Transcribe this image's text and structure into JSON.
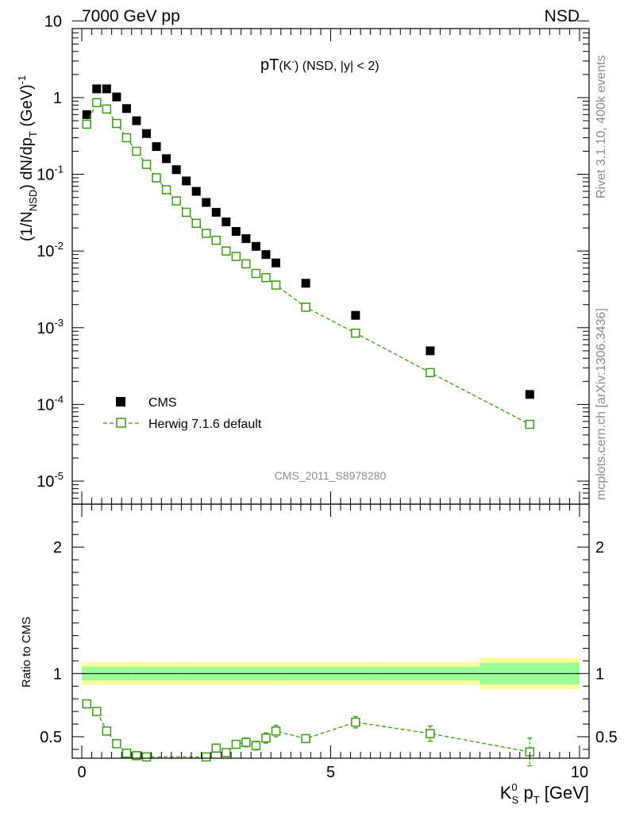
{
  "header": {
    "left": "7000 GeV pp",
    "right": "NSD",
    "side_top": "Rivet 3.1.10,  400k events",
    "side_bottom": "mcplots.cern.ch [arXiv:1306.3436]"
  },
  "chart_data": {
    "type": "scatter",
    "title_main": "pT",
    "title_sub": "(K",
    "title_sup": "-",
    "title_rest": ") (NSD, |y| < 2)",
    "analysis_label": "CMS_2011_S8978280",
    "ylabel": "(1/N_NSD) dN/dp_T (GeV)^-1",
    "ylabel_parts": {
      "a": "(1/N",
      "a_sub": "NSD",
      "b": ") dN/dp",
      "b_sub": "T",
      "c": " (GeV)",
      "c_sup": "-1"
    },
    "xlabel_parts": {
      "a": "K",
      "a_sup": "0",
      "a_sub": "S",
      "b": " p",
      "b_sub": "T",
      "c": " [GeV]"
    },
    "ratio_ylabel": "Ratio to CMS",
    "xlim": [
      -0.2,
      10
    ],
    "ylim_log": [
      -5.3,
      0.9
    ],
    "ratio_ylim": [
      0.33,
      2.34
    ],
    "x_ticks": [
      "0",
      "5",
      "10"
    ],
    "y_ticks_exp": [
      {
        "base": "10",
        "exp": "-5"
      },
      {
        "base": "10",
        "exp": "-4"
      },
      {
        "base": "10",
        "exp": "-3"
      },
      {
        "base": "10",
        "exp": "-2"
      },
      {
        "base": "10",
        "exp": "-1"
      },
      {
        "base": "1",
        "exp": ""
      },
      {
        "base": "10",
        "exp": ""
      }
    ],
    "ratio_ticks": [
      "0.5",
      "1",
      "2"
    ],
    "legend": {
      "placement": "lower-left",
      "cms": "CMS",
      "herwig": "Herwig 7.1.6 default"
    },
    "series": [
      {
        "name": "CMS",
        "x": [
          0.1,
          0.3,
          0.5,
          0.7,
          0.9,
          1.1,
          1.3,
          1.5,
          1.7,
          1.9,
          2.1,
          2.3,
          2.5,
          2.7,
          2.9,
          3.1,
          3.3,
          3.5,
          3.7,
          3.9,
          4.5,
          5.5,
          7.0,
          9.0
        ],
        "y": [
          0.6,
          1.3,
          1.3,
          1.02,
          0.72,
          0.5,
          0.34,
          0.23,
          0.16,
          0.115,
          0.082,
          0.06,
          0.043,
          0.032,
          0.024,
          0.018,
          0.0145,
          0.0115,
          0.009,
          0.007,
          0.0038,
          0.00145,
          0.0005,
          0.000135
        ]
      },
      {
        "name": "Herwig 7.1.6 default",
        "x": [
          0.1,
          0.3,
          0.5,
          0.7,
          0.9,
          1.1,
          1.3,
          1.5,
          1.7,
          1.9,
          2.1,
          2.3,
          2.5,
          2.7,
          2.9,
          3.1,
          3.3,
          3.5,
          3.7,
          3.9,
          4.5,
          5.5,
          7.0,
          9.0
        ],
        "y": [
          0.45,
          0.86,
          0.71,
          0.46,
          0.3,
          0.2,
          0.135,
          0.09,
          0.063,
          0.045,
          0.032,
          0.023,
          0.017,
          0.0138,
          0.01,
          0.0085,
          0.0068,
          0.0051,
          0.0045,
          0.0036,
          0.00185,
          0.00085,
          0.00026,
          5.5e-05
        ]
      }
    ],
    "ratio": {
      "x": [
        0.1,
        0.3,
        0.5,
        0.7,
        0.9,
        1.1,
        1.3,
        2.5,
        2.7,
        2.9,
        3.1,
        3.3,
        3.5,
        3.7,
        3.9,
        4.5,
        5.5,
        7.0,
        9.0
      ],
      "y": [
        0.76,
        0.7,
        0.545,
        0.445,
        0.37,
        0.35,
        0.34,
        0.34,
        0.41,
        0.375,
        0.44,
        0.455,
        0.43,
        0.49,
        0.545,
        0.485,
        0.615,
        0.525,
        0.38
      ],
      "err": [
        0.01,
        0.01,
        0.01,
        0.01,
        0.01,
        0.01,
        0.01,
        0.01,
        0.02,
        0.02,
        0.03,
        0.035,
        0.035,
        0.04,
        0.045,
        0.03,
        0.045,
        0.06,
        0.11
      ]
    },
    "bands": {
      "edges": [
        0.0,
        1.0,
        2.0,
        3.0,
        4.0,
        5.0,
        6.0,
        8.0,
        10.0
      ],
      "yellow_half": [
        0.09,
        0.09,
        0.09,
        0.09,
        0.09,
        0.09,
        0.09,
        0.125
      ],
      "green_half": [
        0.055,
        0.055,
        0.055,
        0.055,
        0.055,
        0.055,
        0.055,
        0.085
      ]
    },
    "colors": {
      "herwig": "#3a9b12",
      "yellow": "#ffff99",
      "green": "#99ff99",
      "gray_text": "#8a8a8a"
    }
  }
}
